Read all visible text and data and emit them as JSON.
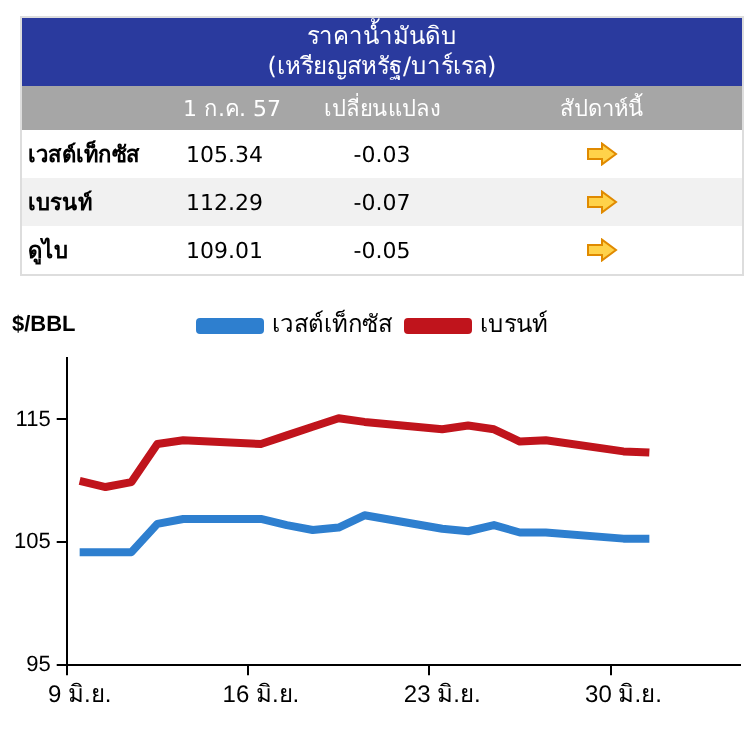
{
  "chart_data": [
    {
      "type": "other",
      "title": "ราคาน้ำมันดิบ",
      "subtitle": "(เหรียญสหรัฐ/บาร์เรล)",
      "categories": [
        "เวสต์เท็กซัส",
        "เบรนท์",
        "ดูไบ"
      ],
      "series": [
        {
          "name": "1 ก.ค. 57",
          "values": [
            105.34,
            112.29,
            109.01
          ]
        },
        {
          "name": "เปลี่ยนแปลง",
          "values": [
            -0.03,
            -0.07,
            -0.05
          ]
        }
      ],
      "annotations": [
        "สัปดาห์นี้"
      ],
      "data_labels": true
    },
    {
      "type": "line",
      "ylabel": "$/BBL",
      "categories": [
        "9 มิ.ย.",
        null,
        null,
        null,
        null,
        null,
        null,
        "16 มิ.ย.",
        null,
        null,
        null,
        null,
        null,
        null,
        "23 มิ.ย.",
        null,
        null,
        null,
        null,
        null,
        null,
        "30 มิ.ย.",
        null,
        null,
        null,
        null
      ],
      "series": [
        {
          "name": "เวสต์เท็กซัส",
          "color": "#2e7fcf",
          "values": [
            104.2,
            104.2,
            104.2,
            106.5,
            106.9,
            null,
            null,
            106.9,
            106.4,
            106.0,
            106.2,
            107.2,
            null,
            null,
            106.1,
            105.9,
            106.4,
            105.8,
            105.8,
            null,
            null,
            105.3,
            105.3,
            null,
            null,
            null
          ]
        },
        {
          "name": "เบรนท์",
          "color": "#c0141c",
          "values": [
            110.0,
            109.5,
            109.9,
            113.0,
            113.3,
            null,
            null,
            113.0,
            113.7,
            114.4,
            115.1,
            114.8,
            null,
            null,
            114.2,
            114.5,
            114.2,
            113.2,
            113.3,
            null,
            null,
            112.4,
            112.3,
            null,
            null,
            null
          ]
        }
      ],
      "ylim": [
        95,
        120
      ],
      "yticks": [
        95,
        105,
        115
      ],
      "grid": false,
      "legend": "top",
      "marker": "none"
    }
  ]
}
